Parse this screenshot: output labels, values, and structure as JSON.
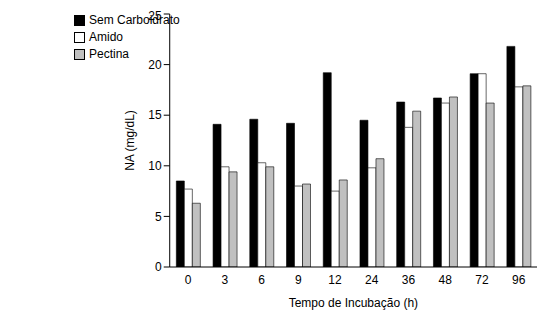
{
  "chart_data": {
    "type": "bar",
    "x_label": "Tempo de Incubação (h)",
    "y_label": "NA (mg/dL)",
    "categories": [
      "0",
      "3",
      "6",
      "9",
      "12",
      "24",
      "36",
      "48",
      "72",
      "96"
    ],
    "series": [
      {
        "name": "Sem Carboidrato",
        "color": "#000000",
        "values": [
          8.5,
          14.1,
          14.6,
          14.2,
          19.2,
          14.5,
          16.3,
          16.7,
          19.1,
          21.8
        ]
      },
      {
        "name": "Amido",
        "color": "#ffffff",
        "values": [
          7.7,
          9.9,
          10.3,
          8.0,
          7.5,
          9.8,
          13.8,
          16.2,
          19.1,
          17.8
        ]
      },
      {
        "name": "Pectina",
        "color": "#c0c0c0",
        "values": [
          6.3,
          9.4,
          9.9,
          8.2,
          8.6,
          10.7,
          15.4,
          16.8,
          16.2,
          17.9
        ]
      }
    ],
    "ylim": [
      0,
      25
    ],
    "yticks": [
      0,
      5,
      10,
      15,
      20,
      25
    ],
    "grid": false,
    "legend": "upper left"
  }
}
